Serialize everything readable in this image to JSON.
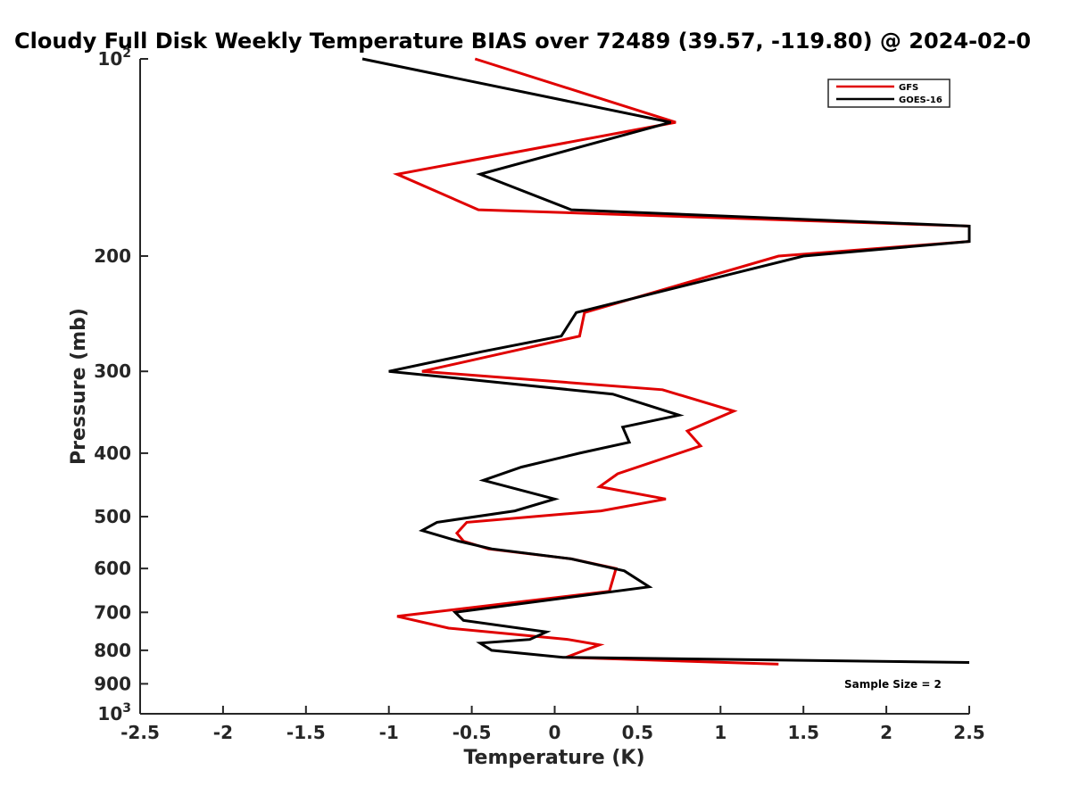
{
  "chart_data": {
    "type": "line",
    "title": "Cloudy Full Disk Weekly Temperature BIAS over 72489 (39.57, -119.80) @ 2024-02-0",
    "xlabel": "Temperature (K)",
    "ylabel": "Pressure (mb)",
    "xlim": [
      -2.5,
      2.5
    ],
    "ylim": [
      100,
      1000
    ],
    "y_scale": "log",
    "y_reversed": true,
    "grid": false,
    "legend_position": "top-right",
    "x_ticks": [
      -2.5,
      -2,
      -1.5,
      -1,
      -0.5,
      0,
      0.5,
      1,
      1.5,
      2,
      2.5
    ],
    "x_tick_labels": [
      "-2.5",
      "-2",
      "-1.5",
      "-1",
      "-0.5",
      "0",
      "0.5",
      "1",
      "1.5",
      "2",
      "2.5"
    ],
    "y_ticks": [
      200,
      300,
      400,
      500,
      600,
      700,
      800,
      900
    ],
    "y_tick_labels": [
      "200",
      "300",
      "400",
      "500",
      "600",
      "700",
      "800",
      "900"
    ],
    "y_tick_label_top": {
      "base": "10",
      "exp": "2"
    },
    "y_tick_label_bottom": {
      "base": "10",
      "exp": "3"
    },
    "annotation": "Sample Size = 2",
    "series": [
      {
        "name": "GFS",
        "color": "#e00000",
        "points": [
          [
            -0.48,
            100
          ],
          [
            0.73,
            125
          ],
          [
            -0.95,
            150
          ],
          [
            -0.46,
            170
          ],
          [
            2.5,
            180
          ],
          [
            2.5,
            190
          ],
          [
            1.35,
            200
          ],
          [
            0.18,
            244
          ],
          [
            0.15,
            265
          ],
          [
            -0.27,
            280
          ],
          [
            -0.8,
            300
          ],
          [
            0.65,
            320
          ],
          [
            1.08,
            345
          ],
          [
            0.8,
            370
          ],
          [
            0.88,
            390
          ],
          [
            0.38,
            430
          ],
          [
            0.27,
            450
          ],
          [
            0.67,
            470
          ],
          [
            0.28,
            490
          ],
          [
            -0.53,
            510
          ],
          [
            -0.59,
            530
          ],
          [
            -0.55,
            545
          ],
          [
            -0.4,
            560
          ],
          [
            0.1,
            580
          ],
          [
            0.37,
            600
          ],
          [
            0.33,
            650
          ],
          [
            -0.95,
            710
          ],
          [
            -0.64,
            740
          ],
          [
            0.08,
            770
          ],
          [
            0.27,
            785
          ],
          [
            0.18,
            800
          ],
          [
            0.07,
            820
          ],
          [
            1.35,
            840
          ]
        ]
      },
      {
        "name": "GOES-16",
        "color": "#000000",
        "points": [
          [
            -1.16,
            100
          ],
          [
            0.7,
            125
          ],
          [
            -0.45,
            150
          ],
          [
            0.1,
            170
          ],
          [
            2.5,
            180
          ],
          [
            2.5,
            190
          ],
          [
            1.5,
            200
          ],
          [
            0.13,
            244
          ],
          [
            0.04,
            265
          ],
          [
            -0.44,
            280
          ],
          [
            -1.0,
            300
          ],
          [
            0.35,
            325
          ],
          [
            0.75,
            350
          ],
          [
            0.41,
            365
          ],
          [
            0.45,
            385
          ],
          [
            0.15,
            400
          ],
          [
            -0.2,
            420
          ],
          [
            -0.43,
            440
          ],
          [
            0.0,
            470
          ],
          [
            -0.24,
            490
          ],
          [
            -0.71,
            510
          ],
          [
            -0.8,
            525
          ],
          [
            -0.58,
            545
          ],
          [
            -0.38,
            560
          ],
          [
            0.1,
            580
          ],
          [
            0.42,
            605
          ],
          [
            0.57,
            640
          ],
          [
            -0.6,
            700
          ],
          [
            -0.55,
            720
          ],
          [
            -0.05,
            750
          ],
          [
            -0.15,
            770
          ],
          [
            -0.45,
            780
          ],
          [
            -0.38,
            800
          ],
          [
            0.05,
            820
          ],
          [
            2.5,
            835
          ]
        ]
      }
    ]
  }
}
